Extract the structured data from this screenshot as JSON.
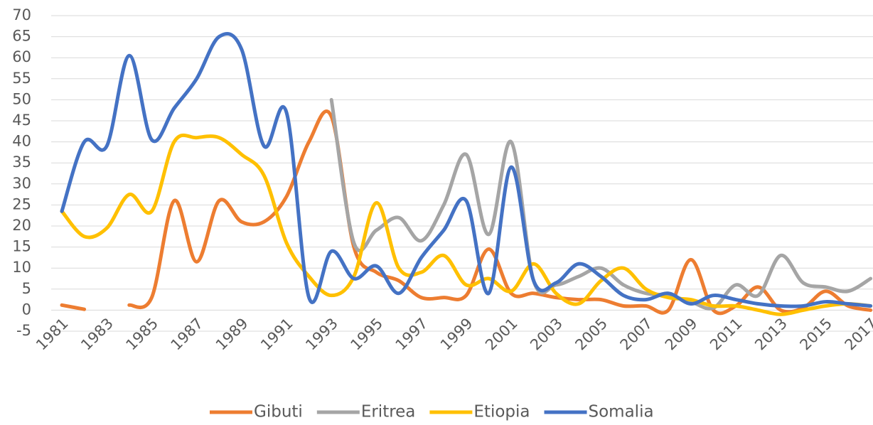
{
  "chart_data": {
    "type": "line",
    "categories": [
      "1981",
      null,
      "1983",
      null,
      "1985",
      null,
      "1987",
      null,
      "1989",
      null,
      "1991",
      null,
      "1993",
      null,
      "1995",
      null,
      "1997",
      null,
      "1999",
      null,
      "2001",
      null,
      "2003",
      null,
      "2005",
      null,
      "2007",
      null,
      "2009",
      null,
      "2011",
      null,
      "2013",
      null,
      "2015",
      null,
      "2017"
    ],
    "series": [
      {
        "name": "Gibuti",
        "color": "#ed7d31",
        "values": [
          1.2,
          0.2,
          null,
          1.2,
          3,
          26,
          11.5,
          26,
          21,
          21,
          27,
          40,
          46,
          15,
          9,
          7,
          3,
          3,
          3.5,
          14.5,
          4,
          4,
          3,
          2.5,
          2.5,
          1,
          1,
          0,
          12,
          0,
          1,
          5.5,
          0,
          0.5,
          4.5,
          1,
          0
        ]
      },
      {
        "name": "Eritrea",
        "color": "#a5a5a5",
        "values": [
          null,
          null,
          null,
          null,
          null,
          null,
          null,
          null,
          null,
          null,
          null,
          null,
          50,
          16,
          19,
          22,
          16.5,
          25,
          37,
          18,
          40,
          7,
          6,
          8,
          10,
          6,
          4,
          3.5,
          2,
          0.5,
          6,
          3.5,
          13,
          6.5,
          5.5,
          4.5,
          7.5
        ]
      },
      {
        "name": "Etiopia",
        "color": "#ffc000",
        "values": [
          23.5,
          17.5,
          19.5,
          27.5,
          23.5,
          40,
          41,
          41,
          37,
          32,
          16,
          8,
          3.5,
          8,
          25.5,
          10,
          9,
          13,
          6,
          7.5,
          4.5,
          11,
          4,
          1.5,
          7,
          10,
          5,
          3,
          2.5,
          1,
          1,
          0,
          -1,
          0,
          1,
          1.5,
          1
        ]
      },
      {
        "name": "Somalia",
        "color": "#4472c4",
        "values": [
          23.5,
          40,
          39,
          60.5,
          40.5,
          48,
          55,
          65,
          62,
          39,
          47,
          3,
          14,
          7.5,
          10.5,
          4,
          12.5,
          19,
          26,
          4,
          34,
          7,
          6.5,
          11,
          8,
          3.5,
          2.5,
          4,
          1.5,
          3.5,
          2.5,
          1.5,
          1,
          1,
          2,
          1.5,
          1
        ]
      }
    ],
    "ylim": [
      -5,
      70
    ],
    "yticks": [
      -5,
      0,
      5,
      10,
      15,
      20,
      25,
      30,
      35,
      40,
      45,
      50,
      55,
      60,
      65,
      70
    ],
    "grid": true,
    "legend": "bottom"
  }
}
